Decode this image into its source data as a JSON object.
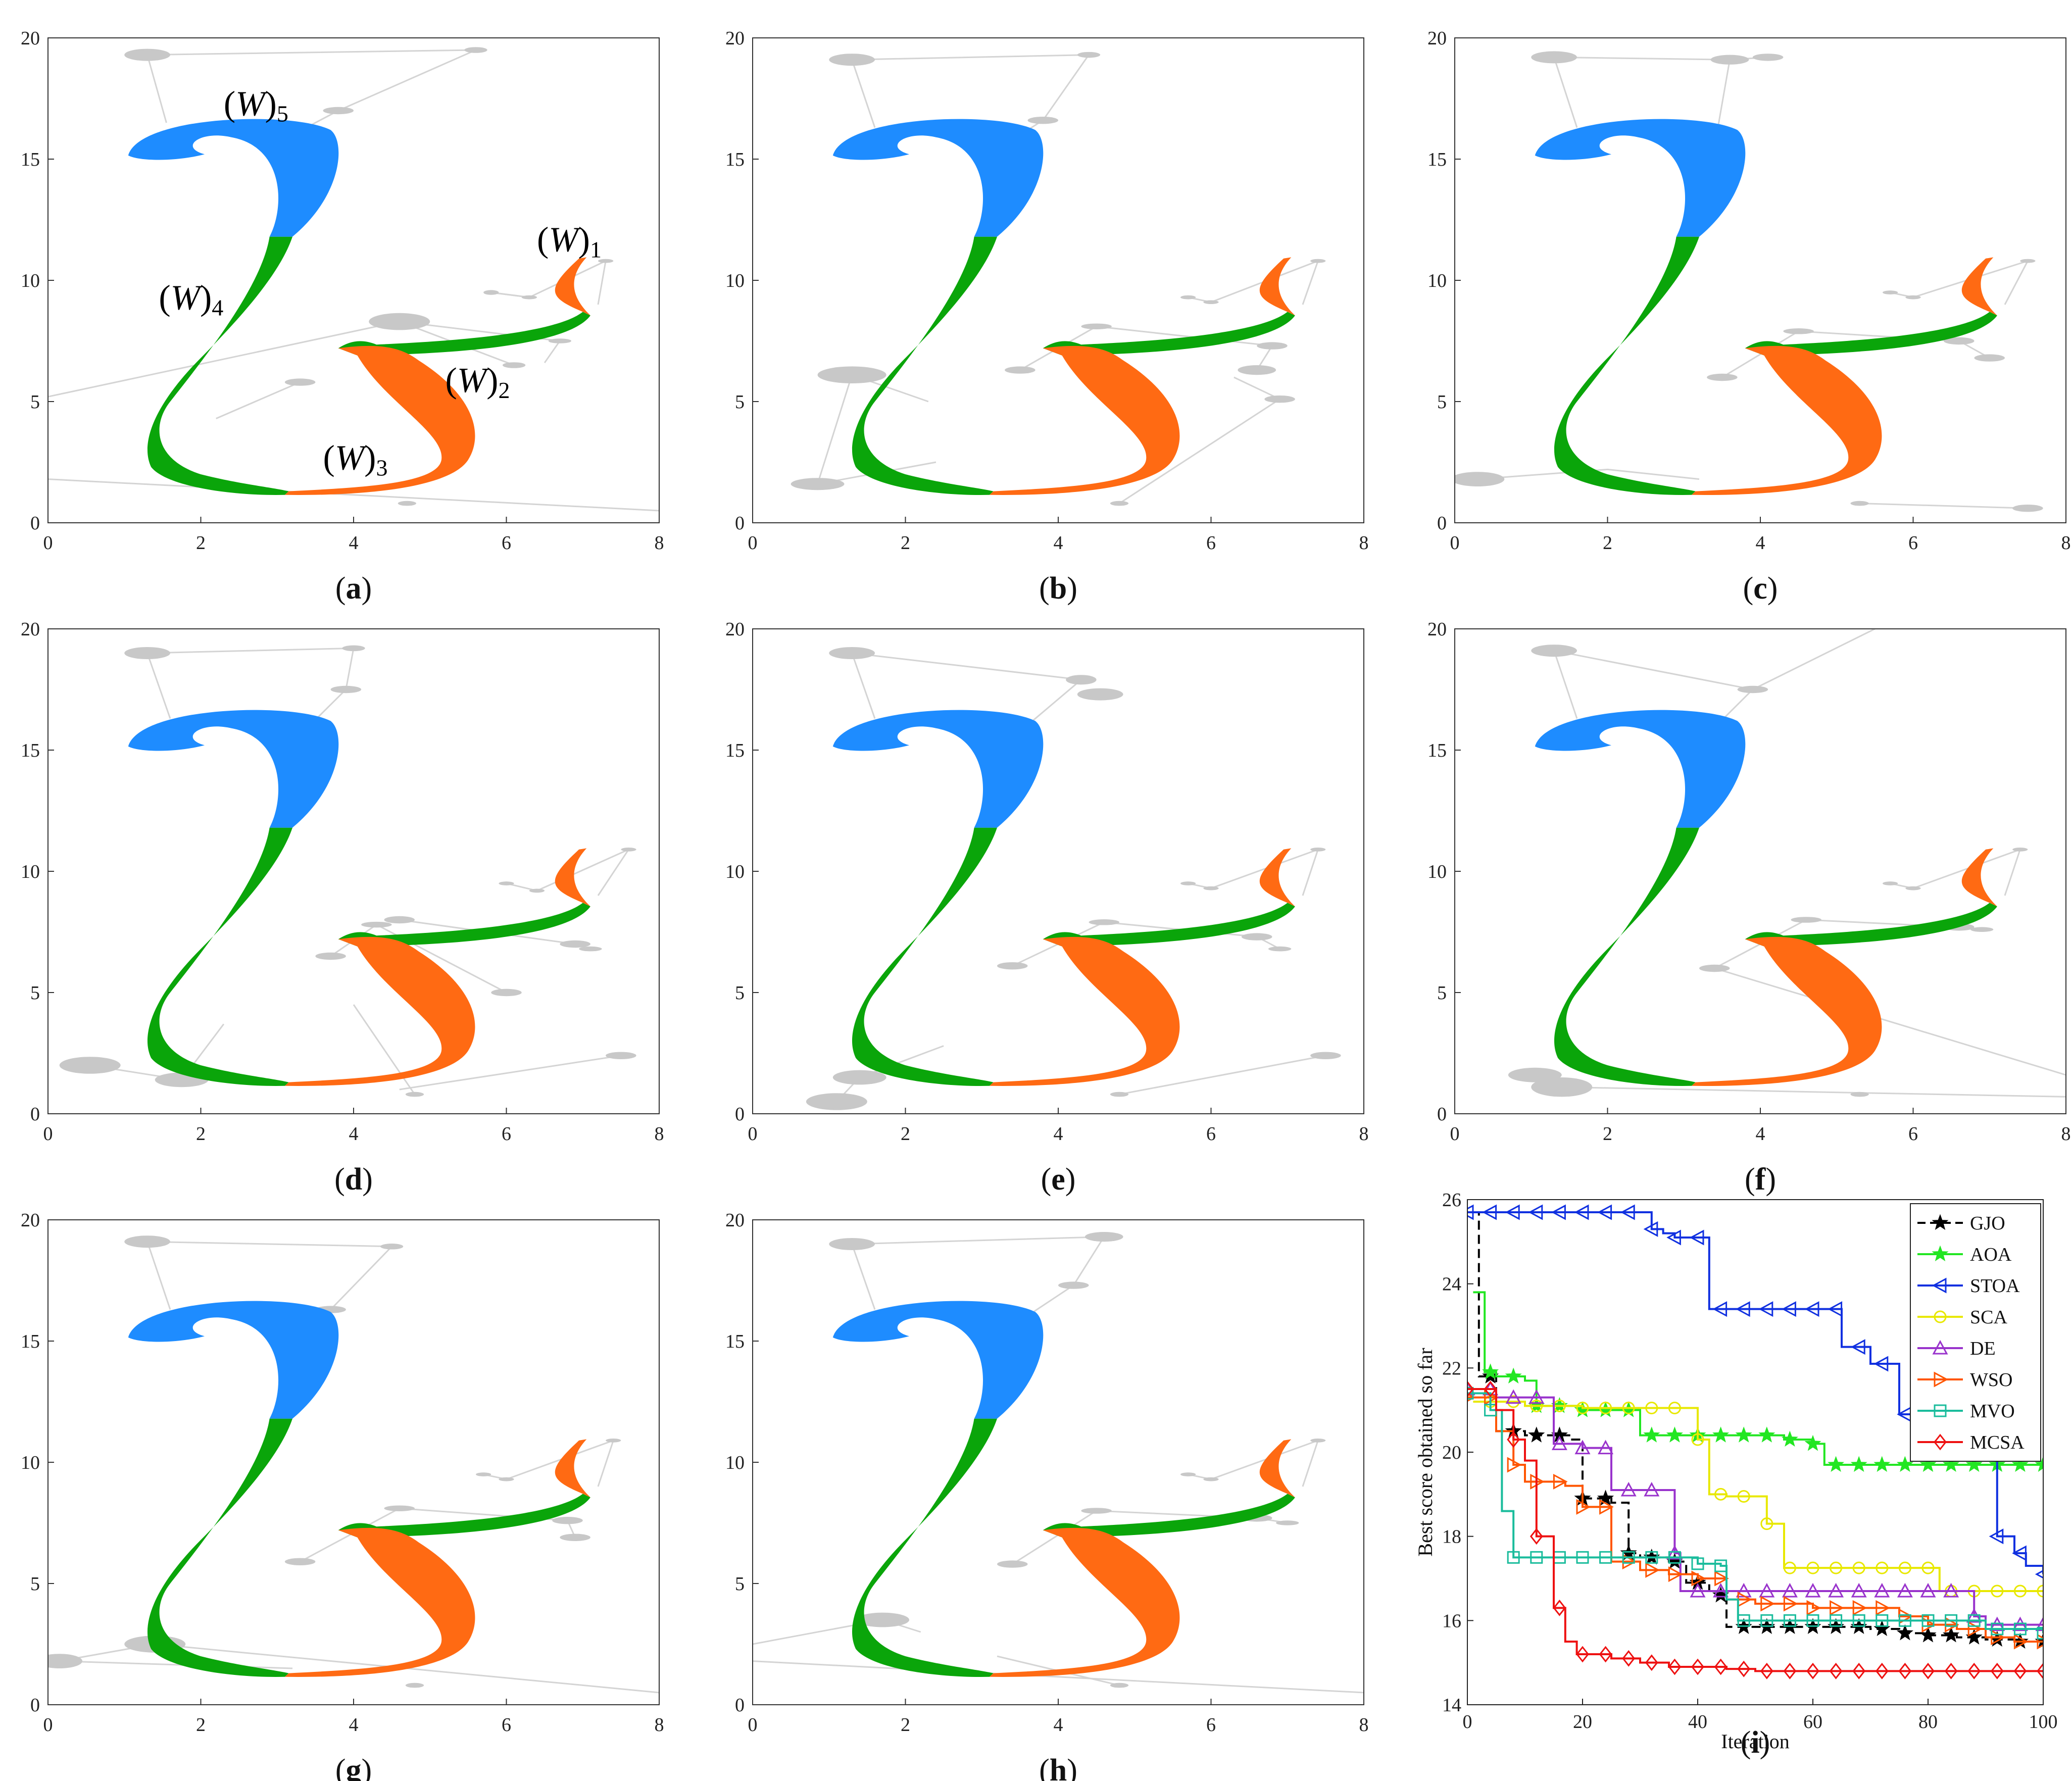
{
  "figure": {
    "colors": {
      "segment_w1": "#ff6a13",
      "segment_w2": "#0aa50a",
      "segment_w3": "#ff6a13",
      "segment_w4": "#0aa50a",
      "segment_w5": "#1e8cff",
      "obstacle": "#c8c8c8",
      "connector": "#d4d4d4",
      "axis": "#333333"
    },
    "curve_labels": [
      "W",
      "W",
      "W",
      "W",
      "W"
    ],
    "curve_label_subscripts": [
      "1",
      "2",
      "3",
      "4",
      "5"
    ],
    "panels": [
      {
        "label": "a",
        "xlim": [
          0,
          8
        ],
        "ylim": [
          0,
          20
        ],
        "x_ticks": [
          "0",
          "2",
          "4",
          "6",
          "8"
        ],
        "y_ticks": [
          "0",
          "5",
          "10",
          "15",
          "20"
        ]
      },
      {
        "label": "b",
        "xlim": [
          0,
          8
        ],
        "ylim": [
          0,
          20
        ],
        "x_ticks": [
          "0",
          "2",
          "4",
          "6",
          "8"
        ],
        "y_ticks": [
          "0",
          "5",
          "10",
          "15",
          "20"
        ]
      },
      {
        "label": "c",
        "xlim": [
          0,
          8
        ],
        "ylim": [
          0,
          20
        ],
        "x_ticks": [
          "0",
          "2",
          "4",
          "6",
          "8"
        ],
        "y_ticks": [
          "0",
          "5",
          "10",
          "15",
          "20"
        ]
      },
      {
        "label": "d",
        "xlim": [
          0,
          8
        ],
        "ylim": [
          0,
          20
        ],
        "x_ticks": [
          "0",
          "2",
          "4",
          "6",
          "8"
        ],
        "y_ticks": [
          "0",
          "5",
          "10",
          "15",
          "20"
        ]
      },
      {
        "label": "e",
        "xlim": [
          0,
          8
        ],
        "ylim": [
          0,
          20
        ],
        "x_ticks": [
          "0",
          "2",
          "4",
          "6",
          "8"
        ],
        "y_ticks": [
          "0",
          "5",
          "10",
          "15",
          "20"
        ]
      },
      {
        "label": "f",
        "xlim": [
          0,
          8
        ],
        "ylim": [
          0,
          20
        ],
        "x_ticks": [
          "0",
          "2",
          "4",
          "6",
          "8"
        ],
        "y_ticks": [
          "0",
          "5",
          "10",
          "15",
          "20"
        ]
      },
      {
        "label": "g",
        "xlim": [
          0,
          8
        ],
        "ylim": [
          0,
          20
        ],
        "x_ticks": [
          "0",
          "2",
          "4",
          "6",
          "8"
        ],
        "y_ticks": [
          "0",
          "5",
          "10",
          "15",
          "20"
        ]
      },
      {
        "label": "h",
        "xlim": [
          0,
          8
        ],
        "ylim": [
          0,
          20
        ],
        "x_ticks": [
          "0",
          "2",
          "4",
          "6",
          "8"
        ],
        "y_ticks": [
          "0",
          "5",
          "10",
          "15",
          "20"
        ]
      }
    ]
  },
  "chart_data": {
    "type": "line",
    "panel_label": "i",
    "title": "",
    "xlabel": "Iteration",
    "ylabel": "Best score obtained so far",
    "xlim": [
      0,
      100
    ],
    "ylim": [
      14,
      26
    ],
    "x_ticks": [
      "0",
      "20",
      "40",
      "60",
      "80",
      "100"
    ],
    "y_ticks": [
      "14",
      "16",
      "18",
      "20",
      "22",
      "24",
      "26"
    ],
    "legend_position": "top-right",
    "series": [
      {
        "name": "GJO",
        "color": "#000000",
        "marker": "star",
        "dashed": true,
        "x": [
          1,
          2,
          5,
          10,
          15,
          18,
          20,
          25,
          28,
          30,
          35,
          38,
          42,
          44,
          45,
          50,
          55,
          60,
          65,
          70,
          75,
          80,
          85,
          90,
          95,
          100
        ],
        "y": [
          25.7,
          21.8,
          20.5,
          20.4,
          20.4,
          20.3,
          18.9,
          18.8,
          17.6,
          17.5,
          17.4,
          16.9,
          16.7,
          16.6,
          15.85,
          15.85,
          15.85,
          15.85,
          15.85,
          15.8,
          15.7,
          15.65,
          15.6,
          15.55,
          15.5,
          15.5
        ]
      },
      {
        "name": "AOA",
        "color": "#22e622",
        "marker": "star",
        "dashed": false,
        "x": [
          1,
          3,
          5,
          10,
          12,
          20,
          30,
          40,
          50,
          55,
          60,
          61,
          62,
          70,
          80,
          90,
          100
        ],
        "y": [
          23.8,
          21.9,
          21.8,
          21.7,
          21.1,
          21.0,
          20.4,
          20.4,
          20.4,
          20.3,
          20.2,
          20.2,
          19.7,
          19.7,
          19.7,
          19.7,
          19.7
        ]
      },
      {
        "name": "STOA",
        "color": "#1030e0",
        "marker": "triangle-left",
        "dashed": false,
        "x": [
          0,
          10,
          20,
          30,
          32,
          34,
          36,
          38,
          40,
          42,
          44,
          50,
          55,
          60,
          62,
          65,
          70,
          75,
          80,
          85,
          88,
          90,
          92,
          95,
          97,
          100
        ],
        "y": [
          25.7,
          25.7,
          25.7,
          25.7,
          25.3,
          25.2,
          25.1,
          25.1,
          25.1,
          23.4,
          23.4,
          23.4,
          23.4,
          23.4,
          23.4,
          22.5,
          22.1,
          20.9,
          20.8,
          20.8,
          20.7,
          19.8,
          18.0,
          17.6,
          17.3,
          17.1
        ]
      },
      {
        "name": "SCA",
        "color": "#e8e800",
        "marker": "circle",
        "dashed": false,
        "x": [
          1,
          10,
          20,
          30,
          35,
          38,
          40,
          42,
          45,
          50,
          52,
          55,
          60,
          70,
          80,
          82,
          85,
          90,
          95,
          100
        ],
        "y": [
          21.2,
          21.1,
          21.05,
          21.05,
          21.05,
          21.05,
          20.3,
          19.0,
          18.95,
          18.95,
          18.3,
          17.25,
          17.25,
          17.25,
          17.25,
          16.7,
          16.7,
          16.7,
          16.7,
          16.7
        ]
      },
      {
        "name": "DE",
        "color": "#9933cc",
        "marker": "triangle-up",
        "dashed": false,
        "x": [
          0,
          5,
          10,
          15,
          20,
          24,
          25,
          30,
          35,
          36,
          37,
          38,
          40,
          45,
          50,
          60,
          70,
          80,
          85,
          88,
          90,
          95,
          100
        ],
        "y": [
          21.5,
          21.3,
          21.3,
          20.2,
          20.1,
          20.1,
          19.1,
          19.1,
          19.1,
          17.6,
          16.7,
          16.7,
          16.7,
          16.7,
          16.7,
          16.7,
          16.7,
          16.7,
          16.7,
          16.1,
          15.9,
          15.9,
          15.9
        ]
      },
      {
        "name": "WSO",
        "color": "#ff5500",
        "marker": "triangle-right",
        "dashed": false,
        "x": [
          0,
          5,
          8,
          10,
          15,
          17,
          20,
          25,
          30,
          35,
          40,
          45,
          50,
          55,
          60,
          70,
          75,
          80,
          85,
          90,
          95,
          100
        ],
        "y": [
          21.3,
          20.5,
          19.7,
          19.3,
          19.3,
          19.2,
          18.7,
          17.4,
          17.2,
          17.1,
          17.0,
          16.5,
          16.4,
          16.4,
          16.3,
          16.3,
          16.1,
          15.9,
          15.8,
          15.6,
          15.5,
          15.5
        ]
      },
      {
        "name": "MVO",
        "color": "#1abc9c",
        "marker": "square",
        "dashed": false,
        "x": [
          0,
          4,
          6,
          8,
          10,
          15,
          20,
          25,
          30,
          35,
          40,
          44,
          45,
          47,
          50,
          60,
          70,
          80,
          90,
          100
        ],
        "y": [
          21.4,
          21.0,
          18.6,
          17.5,
          17.5,
          17.5,
          17.5,
          17.5,
          17.5,
          17.5,
          17.35,
          17.3,
          16.5,
          16.0,
          16.0,
          16.0,
          16.0,
          16.0,
          15.8,
          15.7
        ]
      },
      {
        "name": "MCSA",
        "color": "#ee1111",
        "marker": "diamond",
        "dashed": false,
        "x": [
          0,
          5,
          8,
          10,
          12,
          15,
          17,
          19,
          20,
          25,
          30,
          35,
          40,
          45,
          50,
          60,
          70,
          80,
          90,
          100
        ],
        "y": [
          21.5,
          21.0,
          20.3,
          19.8,
          18.0,
          16.3,
          15.5,
          15.2,
          15.2,
          15.1,
          15.0,
          14.9,
          14.9,
          14.85,
          14.8,
          14.8,
          14.8,
          14.8,
          14.8,
          14.8
        ]
      }
    ]
  }
}
